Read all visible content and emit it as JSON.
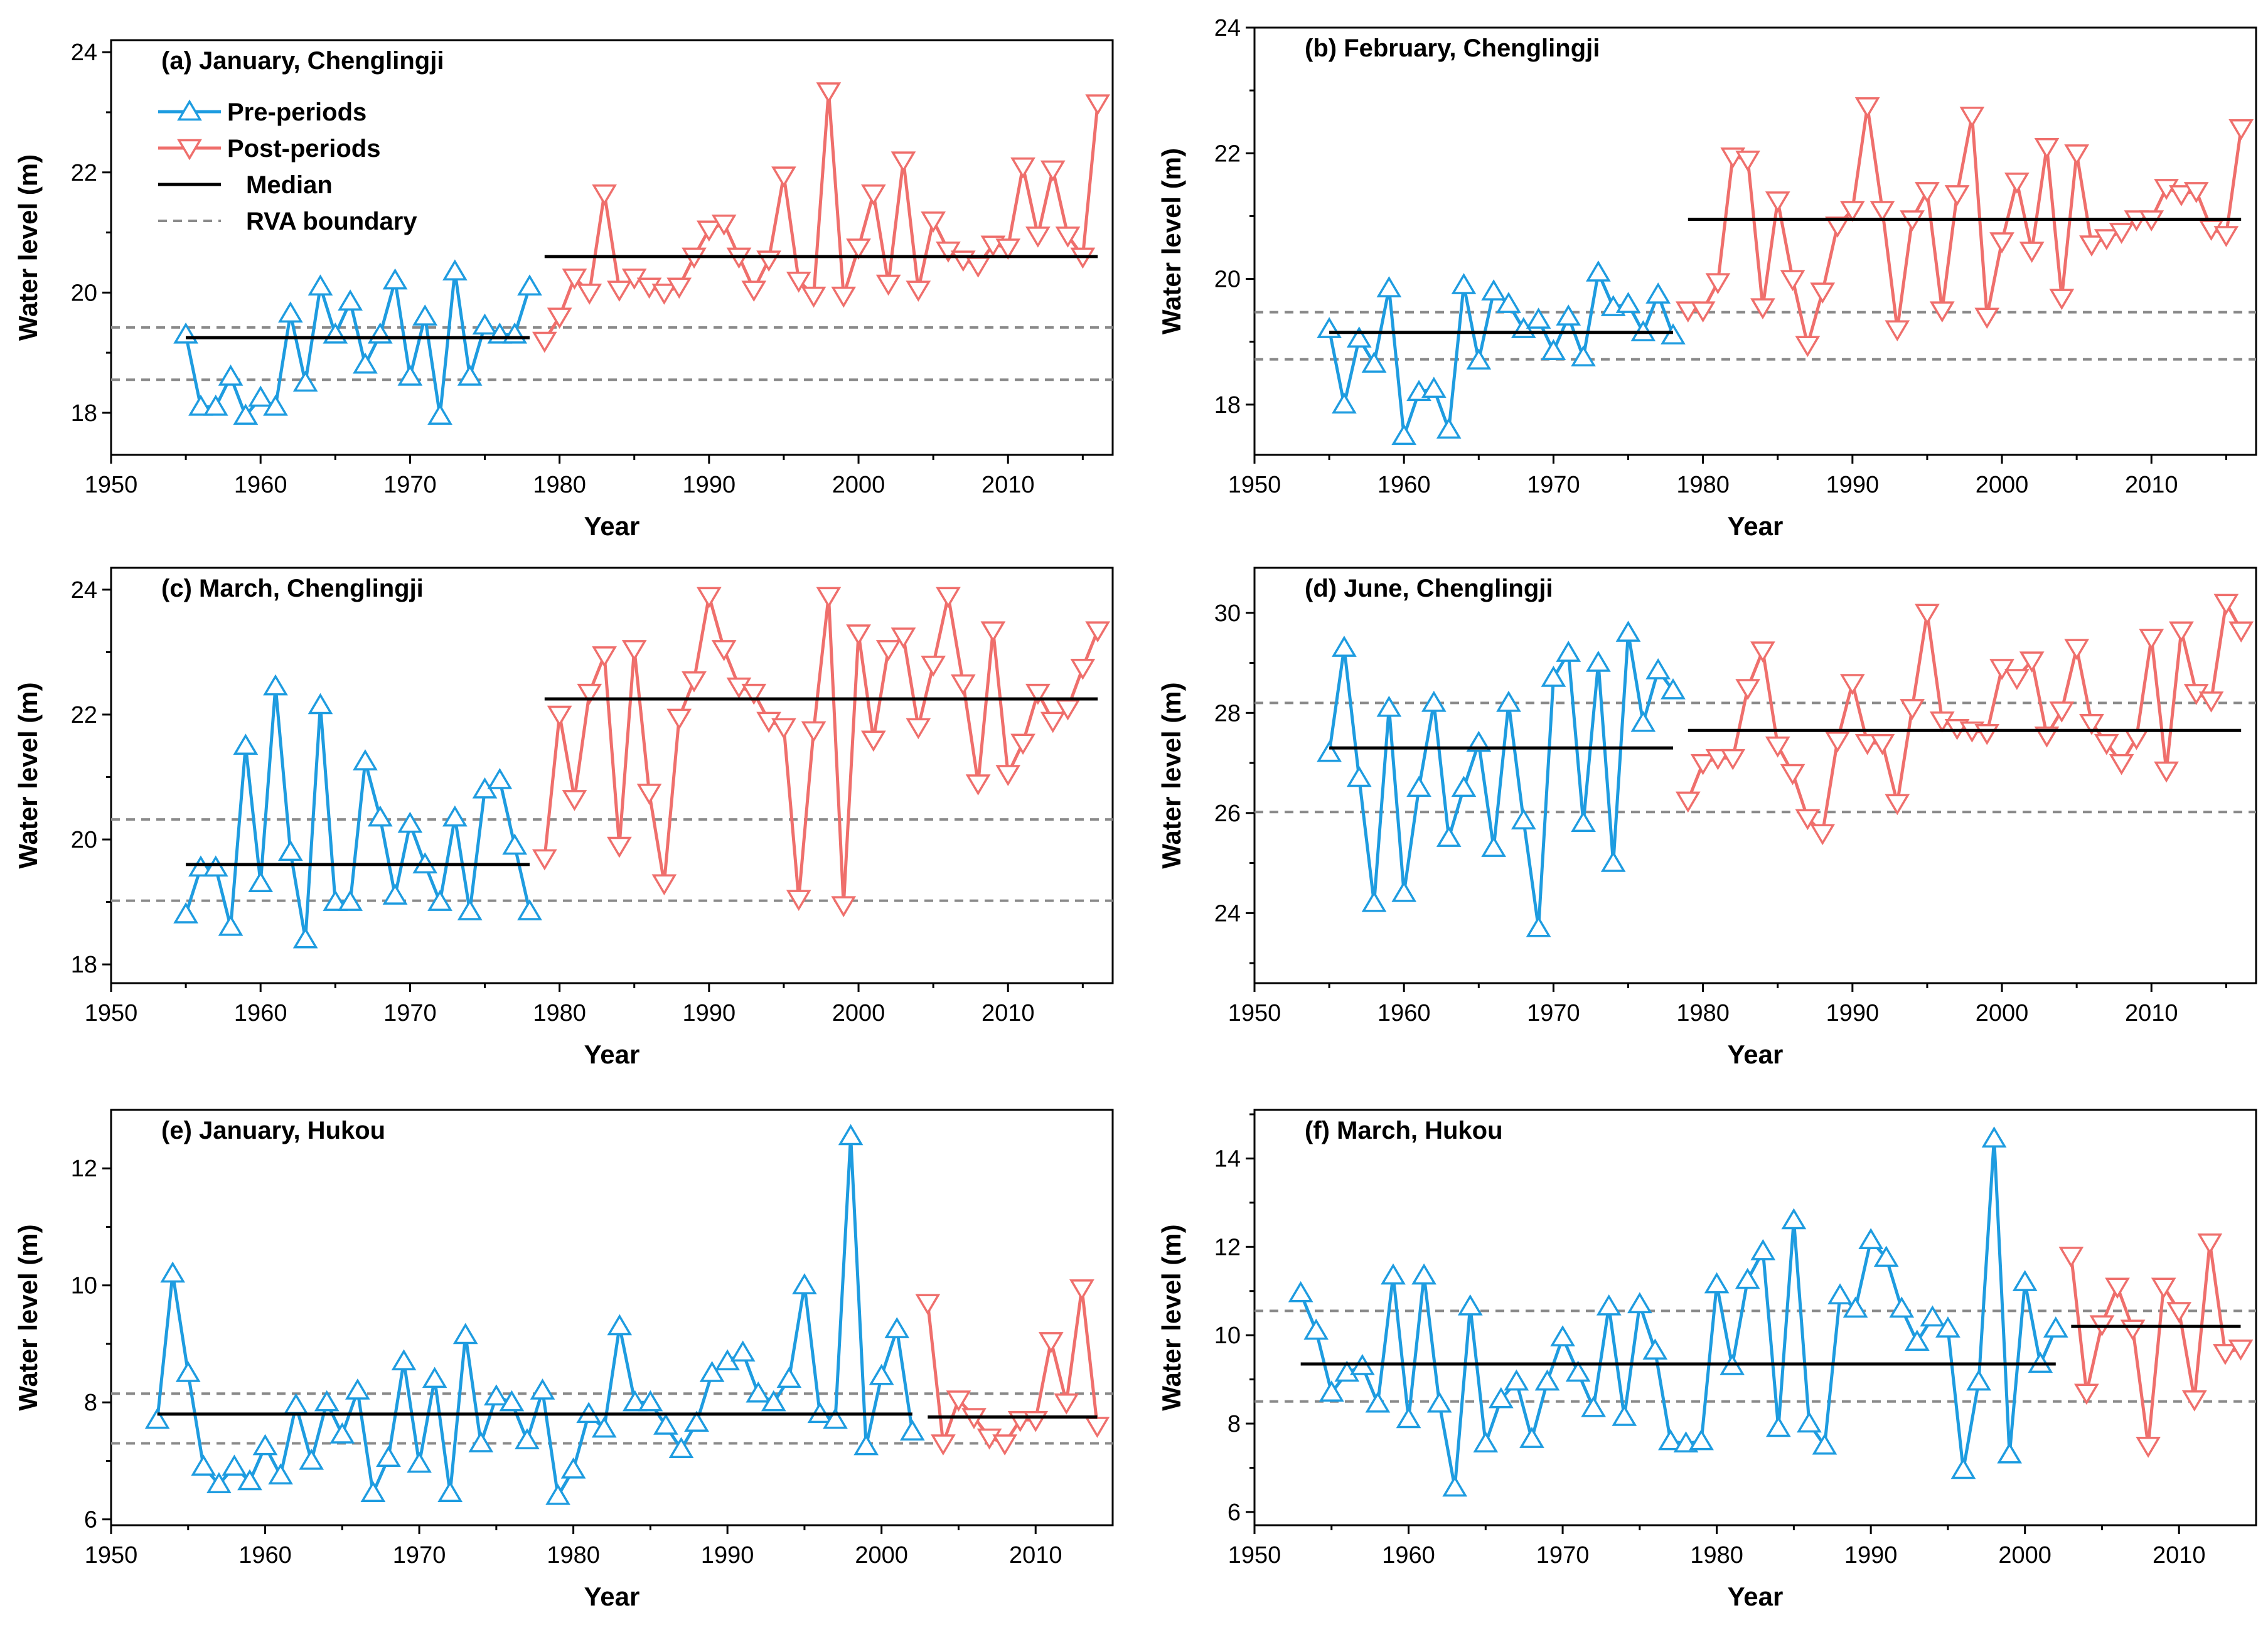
{
  "figure": {
    "colors": {
      "pre": "#1e9ce0",
      "post": "#ef6f6c",
      "median": "#000000",
      "rva": "#8a8a8a"
    }
  },
  "chart_data": [
    {
      "type": "line",
      "title": "(a) January, Chenglingji",
      "xlabel": "Year",
      "ylabel": "Water level (m)",
      "xlim": [
        1950,
        2017
      ],
      "ylim": [
        17.3,
        24.2
      ],
      "xticks": [
        1950,
        1960,
        1970,
        1980,
        1990,
        2000,
        2010
      ],
      "yticks": [
        18,
        20,
        22,
        24
      ],
      "legend": {
        "pre": "Pre-periods",
        "post": "Post-periods",
        "median": "Median",
        "rva": "RVA boundary"
      },
      "series": [
        {
          "name": "Pre-periods",
          "marker": "triangle-up",
          "x0": 1955,
          "values": [
            19.3,
            18.1,
            18.1,
            18.6,
            17.95,
            18.25,
            18.1,
            19.65,
            18.5,
            20.1,
            19.3,
            19.85,
            18.8,
            19.3,
            20.2,
            18.6,
            19.6,
            17.95,
            20.35,
            18.6,
            19.45,
            19.3,
            19.3,
            20.1
          ]
        },
        {
          "name": "Post-periods",
          "marker": "triangle-down",
          "x0": 1979,
          "values": [
            19.2,
            19.6,
            20.25,
            20.0,
            21.65,
            20.05,
            20.25,
            20.1,
            20.0,
            20.1,
            20.6,
            21.05,
            21.15,
            20.6,
            20.05,
            20.55,
            21.95,
            20.2,
            19.95,
            23.35,
            19.95,
            20.75,
            21.65,
            20.15,
            22.2,
            20.05,
            21.2,
            20.7,
            20.55,
            20.45,
            20.8,
            20.75,
            22.1,
            20.95,
            22.05,
            20.95,
            20.6,
            23.15
          ]
        }
      ],
      "medians": [
        {
          "from": 1955,
          "to": 1978,
          "value": 19.25
        },
        {
          "from": 1979,
          "to": 2016,
          "value": 20.6
        }
      ],
      "rva": [
        18.55,
        19.42
      ]
    },
    {
      "type": "line",
      "title": "(b) February, Chenglingji",
      "xlabel": "Year",
      "ylabel": "Water level (m)",
      "xlim": [
        1950,
        2017
      ],
      "ylim": [
        17.2,
        24.0
      ],
      "xticks": [
        1950,
        1960,
        1970,
        1980,
        1990,
        2000,
        2010
      ],
      "yticks": [
        18,
        20,
        22,
        24
      ],
      "series": [
        {
          "name": "Pre-periods",
          "marker": "triangle-up",
          "x0": 1955,
          "values": [
            19.2,
            18.0,
            19.05,
            18.65,
            19.85,
            17.5,
            18.2,
            18.25,
            17.6,
            19.9,
            18.7,
            19.8,
            19.6,
            19.2,
            19.35,
            18.85,
            19.4,
            18.75,
            20.1,
            19.55,
            19.6,
            19.15,
            19.75,
            19.1
          ]
        },
        {
          "name": "Post-periods",
          "marker": "triangle-down",
          "x0": 1979,
          "values": [
            19.5,
            19.5,
            19.95,
            21.95,
            21.9,
            19.55,
            21.25,
            20.0,
            18.95,
            19.8,
            20.85,
            21.1,
            22.75,
            21.1,
            19.2,
            20.95,
            21.4,
            19.5,
            21.35,
            22.6,
            19.4,
            20.6,
            21.55,
            20.45,
            22.1,
            19.7,
            22.0,
            20.55,
            20.65,
            20.75,
            20.95,
            20.95,
            21.45,
            21.35,
            21.4,
            20.8,
            20.7,
            22.4
          ]
        }
      ],
      "medians": [
        {
          "from": 1955,
          "to": 1978,
          "value": 19.15
        },
        {
          "from": 1979,
          "to": 2016,
          "value": 20.95
        }
      ],
      "rva": [
        18.72,
        19.47
      ]
    },
    {
      "type": "line",
      "title": "(c) March, Chenglingji",
      "xlabel": "Year",
      "ylabel": "Water  level (m)",
      "xlim": [
        1950,
        2017
      ],
      "ylim": [
        17.7,
        24.35
      ],
      "xticks": [
        1950,
        1960,
        1970,
        1980,
        1990,
        2000,
        2010
      ],
      "yticks": [
        18,
        20,
        22,
        24
      ],
      "series": [
        {
          "name": "Pre-periods",
          "marker": "triangle-up",
          "x0": 1955,
          "values": [
            18.8,
            19.55,
            19.55,
            18.6,
            21.5,
            19.3,
            22.45,
            19.8,
            18.4,
            22.15,
            19.0,
            19.0,
            21.25,
            20.35,
            19.1,
            20.25,
            19.6,
            19.0,
            20.35,
            18.85,
            20.8,
            20.95,
            19.9,
            18.85
          ]
        },
        {
          "name": "Post-periods",
          "marker": "triangle-down",
          "x0": 1979,
          "values": [
            19.7,
            22.0,
            20.65,
            22.35,
            22.95,
            19.9,
            23.05,
            20.75,
            19.3,
            21.95,
            22.55,
            23.9,
            23.05,
            22.45,
            22.35,
            21.9,
            21.8,
            19.05,
            21.75,
            23.9,
            18.95,
            23.3,
            21.6,
            23.05,
            23.25,
            21.8,
            22.8,
            23.9,
            22.5,
            20.9,
            23.35,
            21.05,
            21.55,
            22.35,
            21.9,
            22.1,
            22.75,
            23.35
          ]
        }
      ],
      "medians": [
        {
          "from": 1955,
          "to": 1978,
          "value": 19.6
        },
        {
          "from": 1979,
          "to": 2016,
          "value": 22.25
        }
      ],
      "rva": [
        19.02,
        20.32
      ]
    },
    {
      "type": "line",
      "title": "(d) June, Chenglingji",
      "xlabel": "Year",
      "ylabel": "Water level (m)",
      "xlim": [
        1950,
        2017
      ],
      "ylim": [
        22.6,
        30.9
      ],
      "xticks": [
        1950,
        1960,
        1970,
        1980,
        1990,
        2000,
        2010
      ],
      "yticks": [
        24,
        26,
        28,
        30
      ],
      "series": [
        {
          "name": "Pre-periods",
          "marker": "triangle-up",
          "x0": 1955,
          "values": [
            27.2,
            29.3,
            26.7,
            24.2,
            28.1,
            24.4,
            26.5,
            28.2,
            25.5,
            26.5,
            27.4,
            25.3,
            28.2,
            25.85,
            23.7,
            28.7,
            29.2,
            25.8,
            29.0,
            25.0,
            29.6,
            27.8,
            28.85,
            28.45
          ]
        },
        {
          "name": "Post-periods",
          "marker": "triangle-down",
          "x0": 1979,
          "values": [
            26.25,
            27.0,
            27.1,
            27.1,
            28.5,
            29.25,
            27.35,
            26.8,
            25.9,
            25.6,
            27.45,
            28.6,
            27.4,
            27.4,
            26.2,
            28.1,
            30.0,
            27.85,
            27.7,
            27.65,
            27.6,
            28.9,
            28.7,
            29.05,
            27.55,
            28.05,
            29.3,
            27.8,
            27.4,
            27.0,
            27.5,
            29.5,
            26.85,
            29.65,
            28.4,
            28.25,
            30.2,
            29.65
          ]
        }
      ],
      "medians": [
        {
          "from": 1955,
          "to": 1978,
          "value": 27.3
        },
        {
          "from": 1979,
          "to": 2016,
          "value": 27.65
        }
      ],
      "rva": [
        26.02,
        28.2
      ]
    },
    {
      "type": "line",
      "title": "(e) January, Hukou",
      "xlabel": "Year",
      "ylabel": "Water level (m)",
      "xlim": [
        1950,
        2015
      ],
      "ylim": [
        5.9,
        13.0
      ],
      "xticks": [
        1950,
        1960,
        1970,
        1980,
        1990,
        2000,
        2010
      ],
      "yticks": [
        6,
        8,
        10,
        12
      ],
      "series": [
        {
          "name": "Pre-periods",
          "marker": "triangle-up",
          "x0": 1953,
          "values": [
            7.7,
            10.2,
            8.5,
            6.9,
            6.6,
            6.9,
            6.65,
            7.25,
            6.75,
            7.95,
            7.0,
            8.0,
            7.45,
            8.2,
            6.45,
            7.05,
            8.7,
            6.95,
            8.4,
            6.45,
            9.15,
            7.3,
            8.1,
            8.0,
            7.35,
            8.2,
            6.4,
            6.85,
            7.8,
            7.55,
            9.3,
            8.0,
            8.0,
            7.6,
            7.2,
            7.65,
            8.5,
            8.7,
            8.85,
            8.15,
            8.0,
            8.4,
            10.0,
            7.8,
            7.7,
            12.55,
            7.25,
            8.45,
            9.25,
            7.5
          ]
        },
        {
          "name": "Post-periods",
          "marker": "triangle-down",
          "x0": 2003,
          "values": [
            9.7,
            7.3,
            8.05,
            7.75,
            7.4,
            7.3,
            7.7,
            7.7,
            9.05,
            8.0,
            9.95,
            7.6
          ]
        }
      ],
      "medians": [
        {
          "from": 1953,
          "to": 2002,
          "value": 7.8
        },
        {
          "from": 2003,
          "to": 2014,
          "value": 7.75
        }
      ],
      "rva": [
        7.3,
        8.15
      ]
    },
    {
      "type": "line",
      "title": "(f) March, Hukou",
      "xlabel": "Year",
      "ylabel": "Water level (m)",
      "xlim": [
        1950,
        2015
      ],
      "ylim": [
        5.7,
        15.1
      ],
      "xticks": [
        1950,
        1960,
        1970,
        1980,
        1990,
        2000,
        2010
      ],
      "yticks": [
        6,
        8,
        10,
        12,
        14
      ],
      "series": [
        {
          "name": "Pre-periods",
          "marker": "triangle-up",
          "x0": 1953,
          "values": [
            10.95,
            10.1,
            8.7,
            9.15,
            9.3,
            8.45,
            11.35,
            8.1,
            11.35,
            8.45,
            6.55,
            10.65,
            7.55,
            8.55,
            8.95,
            7.65,
            8.95,
            9.95,
            9.15,
            8.35,
            10.65,
            8.15,
            10.7,
            9.65,
            7.6,
            7.55,
            7.6,
            11.15,
            9.3,
            11.25,
            11.9,
            7.9,
            12.6,
            8.0,
            7.5,
            10.9,
            10.6,
            12.15,
            11.75,
            10.6,
            9.85,
            10.4,
            10.15,
            6.95,
            8.95,
            14.45,
            7.3,
            11.2,
            9.35,
            10.15
          ]
        },
        {
          "name": "Post-periods",
          "marker": "triangle-down",
          "x0": 2003,
          "values": [
            11.8,
            8.7,
            10.25,
            11.1,
            10.15,
            7.5,
            11.1,
            10.55,
            8.55,
            12.1,
            9.6,
            9.7
          ]
        }
      ],
      "medians": [
        {
          "from": 1953,
          "to": 2002,
          "value": 9.35
        },
        {
          "from": 2003,
          "to": 2014,
          "value": 10.2
        }
      ],
      "rva": [
        8.5,
        10.55
      ]
    }
  ]
}
